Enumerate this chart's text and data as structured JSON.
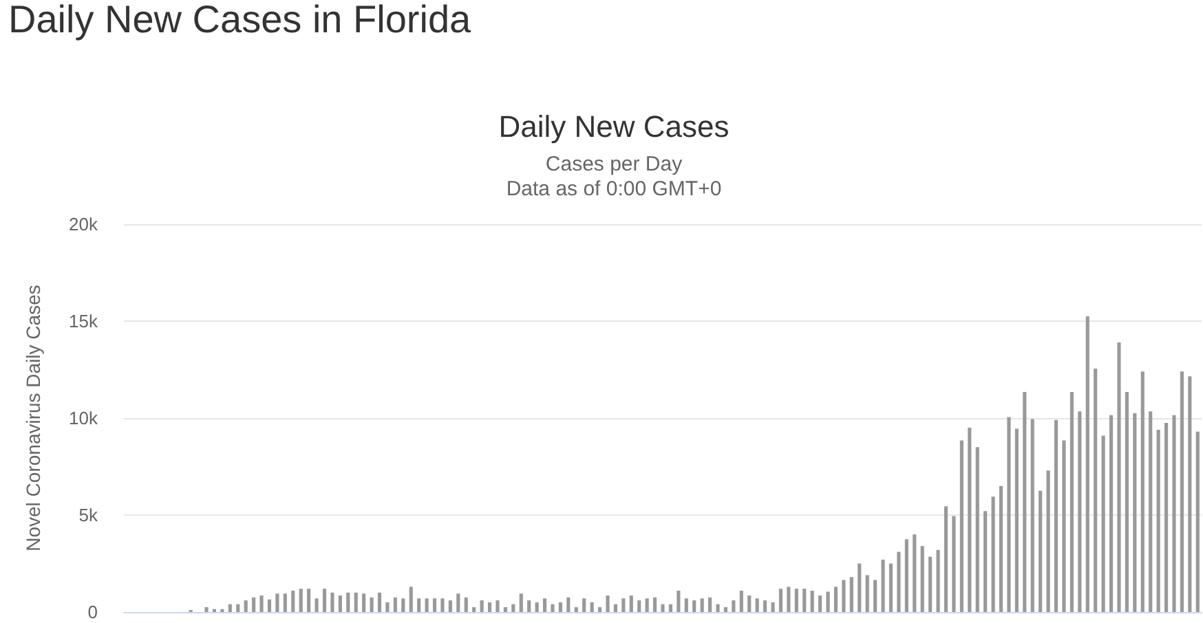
{
  "chart_data": {
    "type": "bar",
    "title": "Daily New Cases in Florida",
    "subtitle": "Daily New Cases",
    "annotations": [
      "Cases per Day",
      "Data as of 0:00 GMT+0"
    ],
    "ylabel": "Novel Coronavirus Daily Cases",
    "categories": [
      null,
      null,
      null,
      null,
      null,
      null,
      null,
      null,
      null,
      null,
      null,
      null,
      null,
      null,
      null,
      null,
      null,
      null,
      null,
      null,
      null,
      null,
      null,
      null,
      null,
      null,
      null,
      null,
      null,
      null,
      null,
      null,
      null,
      null,
      null,
      null,
      null,
      null,
      null,
      null,
      null,
      null,
      null,
      null,
      null,
      null,
      null,
      null,
      null,
      null,
      null,
      null,
      null,
      null,
      null,
      null,
      null,
      null,
      null,
      null,
      null,
      null,
      null,
      null,
      null,
      null,
      null,
      null,
      null,
      null,
      null,
      null,
      null,
      null,
      null,
      null,
      null,
      null,
      null,
      null,
      null,
      null,
      null,
      null,
      null,
      null,
      null,
      null,
      null,
      null,
      null,
      null,
      null,
      null,
      null,
      null,
      null,
      null,
      null,
      null,
      null,
      null,
      null,
      null,
      null,
      null,
      null,
      null,
      null,
      null,
      null,
      null,
      null,
      null,
      null,
      null,
      null,
      null,
      null,
      null,
      null,
      null,
      null,
      null,
      null,
      null,
      null,
      null,
      null,
      null,
      null,
      null,
      null,
      null,
      null,
      null,
      null
    ],
    "values": [
      0,
      0,
      0,
      0,
      0,
      0,
      0,
      0,
      100,
      0,
      250,
      150,
      150,
      400,
      400,
      600,
      750,
      850,
      650,
      950,
      950,
      1100,
      1200,
      1200,
      700,
      1200,
      1000,
      850,
      1000,
      1000,
      950,
      750,
      1000,
      500,
      750,
      700,
      1300,
      700,
      700,
      700,
      700,
      600,
      950,
      750,
      250,
      600,
      500,
      600,
      250,
      400,
      950,
      600,
      500,
      700,
      400,
      500,
      750,
      250,
      700,
      500,
      250,
      850,
      400,
      700,
      850,
      600,
      700,
      750,
      400,
      400,
      1100,
      700,
      600,
      700,
      750,
      400,
      250,
      600,
      1100,
      850,
      700,
      600,
      500,
      1200,
      1300,
      1200,
      1200,
      1100,
      850,
      1050,
      1300,
      1650,
      1800,
      2500,
      1900,
      1650,
      2700,
      2500,
      3100,
      3750,
      4000,
      3400,
      2850,
      3200,
      5450,
      4950,
      8850,
      9500,
      8500,
      5200,
      5950,
      6500,
      10050,
      9450,
      11350,
      9950,
      6250,
      7300,
      9900,
      8850,
      11350,
      10350,
      15250,
      12550,
      9100,
      10150,
      13900,
      11350,
      10250,
      12400,
      10350,
      9400,
      9750,
      10150,
      12400,
      12150,
      9300
    ],
    "color": "#999999",
    "ylim": [
      0,
      20000
    ],
    "yticks": [
      0,
      {
        "value": 5000,
        "label": "5k"
      },
      {
        "value": 10000,
        "label": "10k"
      },
      {
        "value": 15000,
        "label": "15k"
      },
      {
        "value": 20000,
        "label": "20k"
      }
    ],
    "grid": "y",
    "tick_labels": "y"
  }
}
